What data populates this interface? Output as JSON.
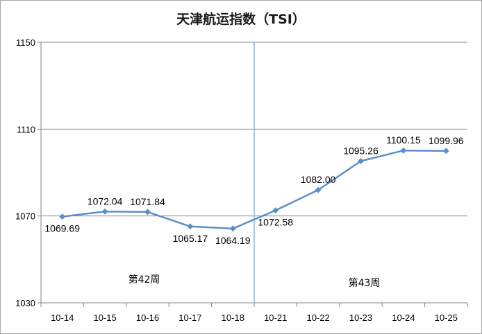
{
  "chart_data": {
    "type": "line",
    "title": "天津航运指数（TSI）",
    "categories": [
      "10-14",
      "10-15",
      "10-16",
      "10-17",
      "10-18",
      "10-21",
      "10-22",
      "10-23",
      "10-24",
      "10-25"
    ],
    "series": [
      {
        "values": [
          1069.69,
          1072.04,
          1071.84,
          1065.17,
          1064.19,
          1072.58,
          1082.0,
          1095.26,
          1100.15,
          1099.96
        ],
        "labels": [
          "1069.69",
          "1072.04",
          "1071.84",
          "1065.17",
          "1064.19",
          "1072.58",
          "1082.00",
          "1095.26",
          "1100.15",
          "1099.96"
        ],
        "label_position": [
          "below",
          "above",
          "above",
          "below",
          "below",
          "below",
          "above",
          "above",
          "above",
          "above"
        ],
        "color": "#5b8fc7"
      }
    ],
    "ylim": [
      1030,
      1150
    ],
    "y_ticks": [
      "1030",
      "1070",
      "1110",
      "1150"
    ],
    "gridlines": true,
    "annotations": [
      {
        "text": "第42周"
      },
      {
        "text": "第43周"
      }
    ],
    "divider_between": [
      "10-18",
      "10-21"
    ],
    "divider_color": "#8fb4d8"
  }
}
